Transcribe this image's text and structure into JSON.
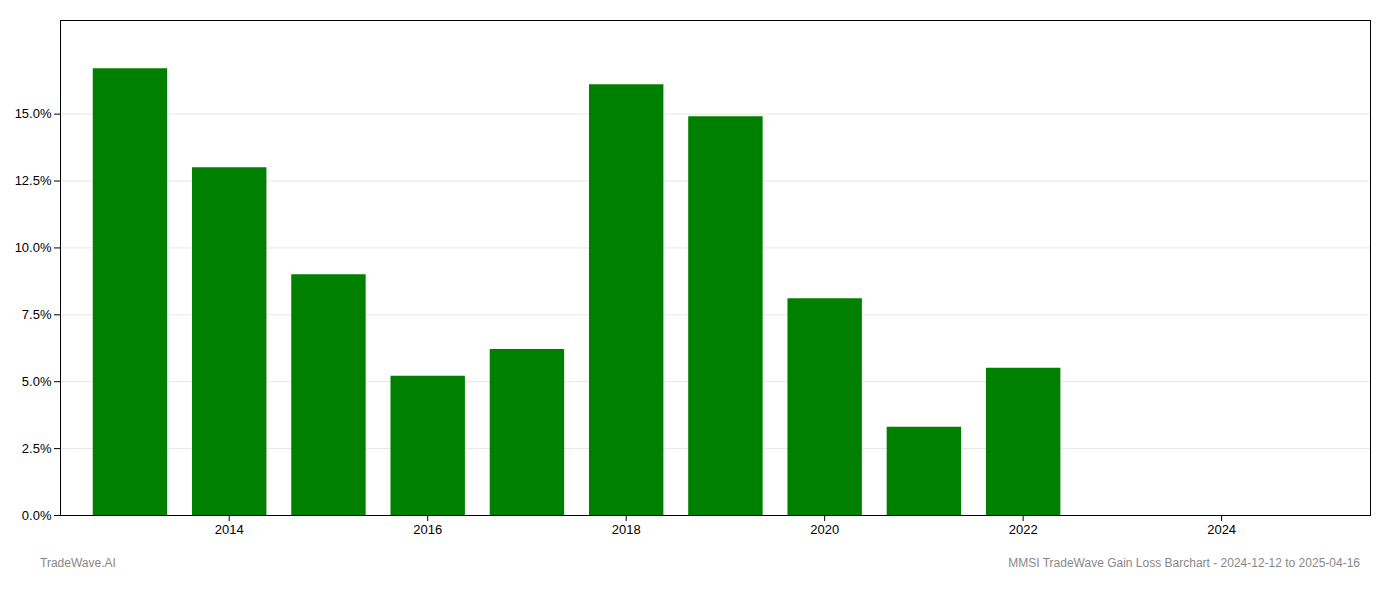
{
  "chart_data": {
    "type": "bar",
    "x": [
      2013,
      2014,
      2015,
      2016,
      2017,
      2018,
      2019,
      2020,
      2021,
      2022
    ],
    "values": [
      0.167,
      0.13,
      0.09,
      0.052,
      0.062,
      0.161,
      0.149,
      0.081,
      0.033,
      0.055
    ],
    "color": "#008000",
    "xlim": [
      2012.3,
      2025.5
    ],
    "xticks": [
      2014,
      2016,
      2018,
      2020,
      2022,
      2024
    ],
    "ylim": [
      0,
      0.185
    ],
    "yticks": [
      {
        "value": 0.0,
        "label": "0.0%"
      },
      {
        "value": 0.025,
        "label": "2.5%"
      },
      {
        "value": 0.05,
        "label": "5.0%"
      },
      {
        "value": 0.075,
        "label": "7.5%"
      },
      {
        "value": 0.1,
        "label": "10.0%"
      },
      {
        "value": 0.125,
        "label": "12.5%"
      },
      {
        "value": 0.15,
        "label": "15.0%"
      }
    ],
    "grid": true,
    "annotations": [
      "TradeWave.AI",
      "MMSI TradeWave Gain Loss Barchart - 2024-12-12 to 2025-04-16"
    ]
  }
}
